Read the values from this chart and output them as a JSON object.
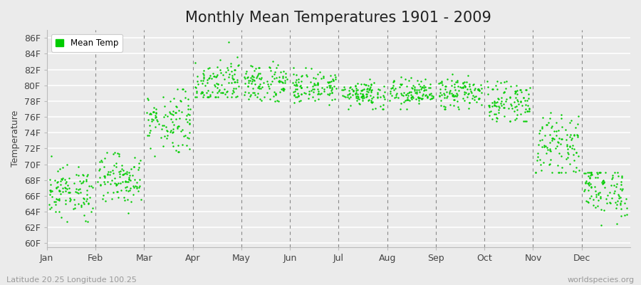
{
  "title": "Monthly Mean Temperatures 1901 - 2009",
  "ylabel": "Temperature",
  "xlabel_labels": [
    "Jan",
    "Feb",
    "Mar",
    "Apr",
    "May",
    "Jun",
    "Jul",
    "Aug",
    "Sep",
    "Oct",
    "Nov",
    "Dec"
  ],
  "ytick_labels": [
    "60F",
    "62F",
    "64F",
    "66F",
    "68F",
    "70F",
    "72F",
    "74F",
    "76F",
    "78F",
    "80F",
    "82F",
    "84F",
    "86F"
  ],
  "ytick_values": [
    60,
    62,
    64,
    66,
    68,
    70,
    72,
    74,
    76,
    78,
    80,
    82,
    84,
    86
  ],
  "ylim": [
    59.5,
    87.0
  ],
  "xlim": [
    0,
    12
  ],
  "dot_color": "#00CC00",
  "dot_size": 3,
  "background_color": "#EBEBEB",
  "grid_color": "#FFFFFF",
  "dashed_line_color": "#888888",
  "legend_label": "Mean Temp",
  "footer_left": "Latitude 20.25 Longitude 100.25",
  "footer_right": "worldspecies.org",
  "title_fontsize": 15,
  "axis_fontsize": 9,
  "footer_fontsize": 8,
  "n_years": 109,
  "monthly_means": [
    66.5,
    68.2,
    75.5,
    80.5,
    80.3,
    79.8,
    79.0,
    79.0,
    79.0,
    77.8,
    72.5,
    66.8
  ],
  "monthly_stds": [
    1.6,
    1.6,
    2.0,
    1.5,
    1.3,
    1.0,
    0.9,
    0.9,
    1.0,
    1.3,
    1.8,
    1.8
  ],
  "monthly_ranges": [
    [
      62.0,
      71.0
    ],
    [
      63.0,
      71.5
    ],
    [
      71.0,
      79.5
    ],
    [
      78.5,
      85.5
    ],
    [
      78.0,
      83.5
    ],
    [
      77.5,
      82.5
    ],
    [
      77.0,
      81.5
    ],
    [
      77.0,
      81.5
    ],
    [
      77.0,
      81.5
    ],
    [
      75.5,
      80.5
    ],
    [
      69.0,
      77.0
    ],
    [
      61.5,
      69.0
    ]
  ]
}
